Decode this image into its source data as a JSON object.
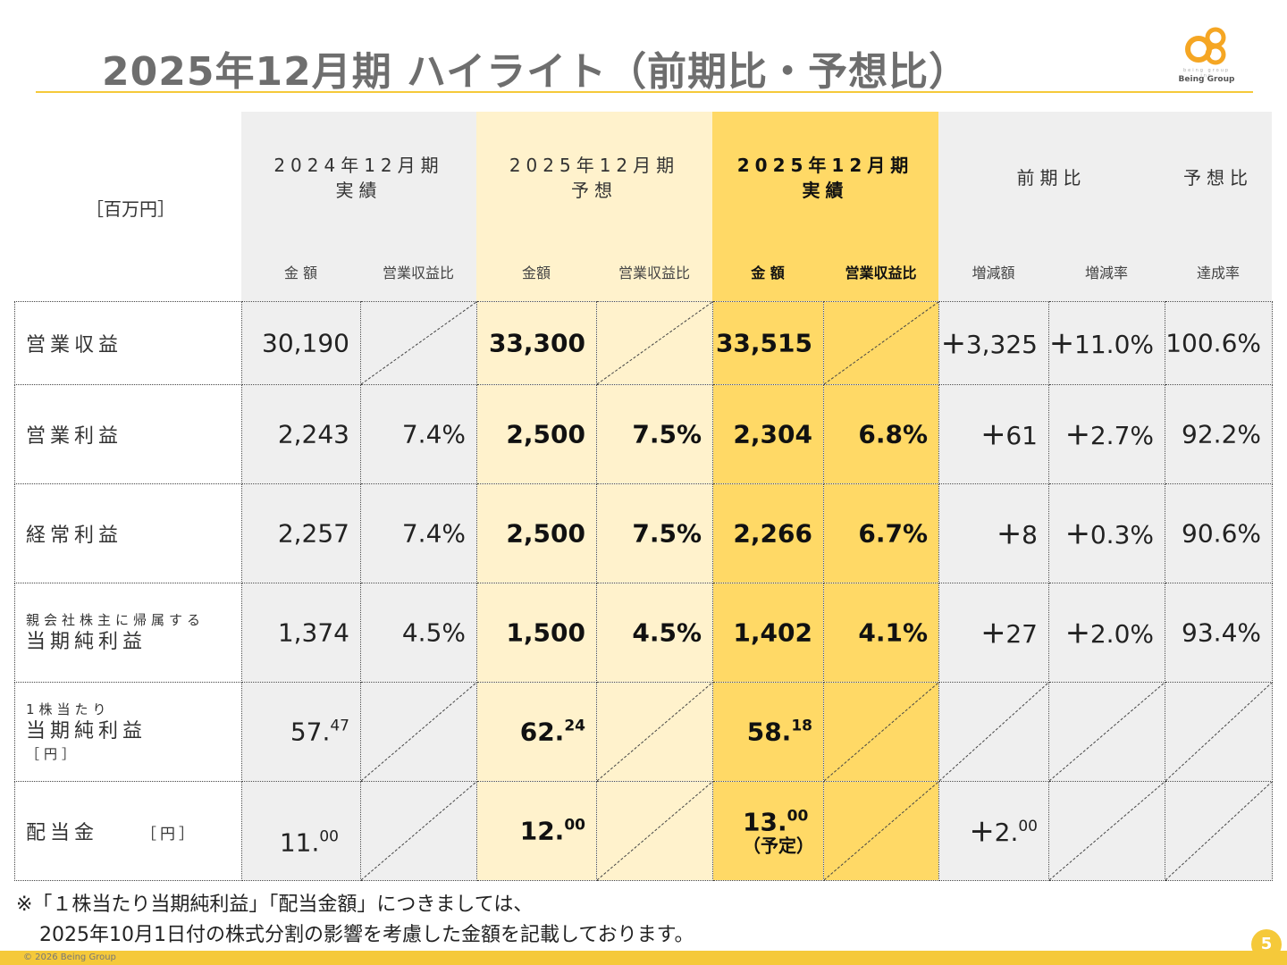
{
  "title": "2025年12月期 ハイライト（前期比・予想比）",
  "logo": {
    "name": "Being Group",
    "tagline": "being group inc"
  },
  "unit_label": "［百万円］",
  "headers": {
    "fy2024": {
      "line1": "2024年12月期",
      "line2": "実績",
      "sub_a": "金 額",
      "sub_b": "営業収益比"
    },
    "forecast": {
      "line1": "2025年12月期",
      "line2": "予想",
      "sub_a": "金額",
      "sub_b": "営業収益比"
    },
    "actual": {
      "line1": "2025年12月期",
      "line2": "実績",
      "sub_a": "金 額",
      "sub_b": "営業収益比"
    },
    "yoy": {
      "label": "前期比",
      "sub_a": "増減額",
      "sub_b": "増減率"
    },
    "achievement": {
      "label": "予想比",
      "sub": "達成率"
    }
  },
  "rows": [
    {
      "label": "営業収益",
      "fy2024_amount": "30,190",
      "forecast_amount": "33,300",
      "actual_amount": "33,515",
      "yoy_plus_amount": "＋",
      "yoy_amount": "3,325",
      "yoy_plus_rate": "＋",
      "yoy_rate": "11.0%",
      "achievement": "100.6%"
    },
    {
      "label": "営業利益",
      "fy2024_amount": "2,243",
      "fy2024_ratio": "7.4%",
      "forecast_amount": "2,500",
      "forecast_ratio": "7.5%",
      "actual_amount": "2,304",
      "actual_ratio": "6.8%",
      "yoy_plus_amount": "＋",
      "yoy_amount": "61",
      "yoy_plus_rate": "＋",
      "yoy_rate": "2.7%",
      "achievement": "92.2%"
    },
    {
      "label": "経常利益",
      "fy2024_amount": "2,257",
      "fy2024_ratio": "7.4%",
      "forecast_amount": "2,500",
      "forecast_ratio": "7.5%",
      "actual_amount": "2,266",
      "actual_ratio": "6.7%",
      "yoy_plus_amount": "＋",
      "yoy_amount": "8",
      "yoy_plus_rate": "＋",
      "yoy_rate": "0.3%",
      "achievement": "90.6%"
    },
    {
      "label_small": "親会社株主に帰属する",
      "label": "当期純利益",
      "fy2024_amount": "1,374",
      "fy2024_ratio": "4.5%",
      "forecast_amount": "1,500",
      "forecast_ratio": "4.5%",
      "actual_amount": "1,402",
      "actual_ratio": "4.1%",
      "yoy_plus_amount": "＋",
      "yoy_amount": "27",
      "yoy_plus_rate": "＋",
      "yoy_rate": "2.0%",
      "achievement": "93.4%"
    },
    {
      "label_line1": "1株当たり",
      "label_line2": "当期純利益",
      "label_line3": "［円］",
      "fy2024_int": "57.",
      "fy2024_dec": "47",
      "forecast_int": "62.",
      "forecast_dec": "24",
      "actual_int": "58.",
      "actual_dec": "18"
    },
    {
      "label": "配当金",
      "label_unit": "［円］",
      "fy2024_int": "11.",
      "fy2024_dec": "00",
      "forecast_int": "12.",
      "forecast_dec": "00",
      "actual_int": "13.",
      "actual_dec": "00",
      "actual_note": "（予定）",
      "yoy_plus_amount": "＋",
      "yoy_int": "2.",
      "yoy_dec": "00"
    }
  ],
  "footnote": {
    "line1": "※「１株当たり当期純利益」「配当金額」につきましては、",
    "line2": "2025年10月1日付の株式分割の影響を考慮した金額を記載しております。"
  },
  "copyright": "© 2026 Being Group",
  "page_number": "5",
  "colors": {
    "accent": "#f5c93a",
    "forecast_bg": "#fff2cc",
    "actual_bg": "#ffd966",
    "gray_bg": "#efefef",
    "title": "#6e6e6e"
  }
}
